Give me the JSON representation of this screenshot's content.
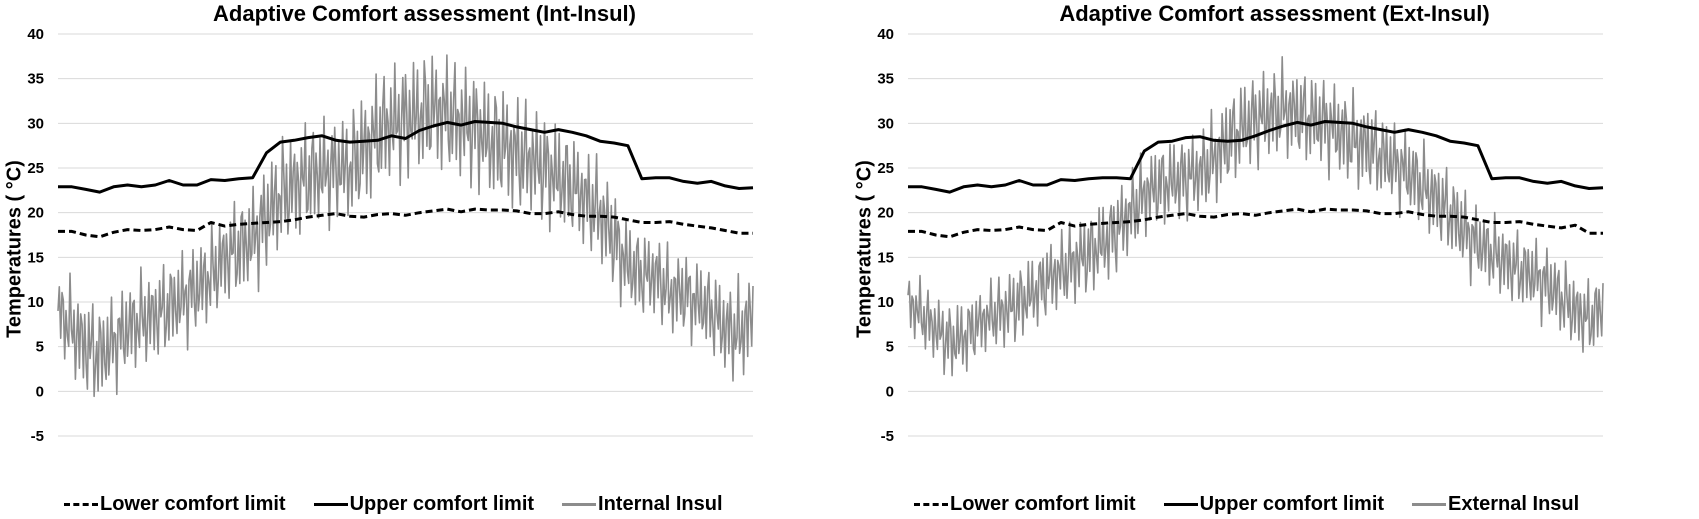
{
  "chart_data": [
    {
      "type": "line",
      "title": "Adaptive Comfort assessment (Int-Insul)",
      "ylabel": "Temperatures ( °C)",
      "xlabel": "",
      "ylim": [
        -5,
        40
      ],
      "yticks": [
        -5,
        0,
        5,
        10,
        15,
        20,
        25,
        30,
        35,
        40
      ],
      "grid": true,
      "legend_position": "bottom",
      "series": [
        {
          "name": "Lower comfort limit",
          "style": "dashed",
          "color": "#000000",
          "values": [
            17.9,
            17.9,
            17.5,
            17.3,
            17.8,
            18.1,
            18.0,
            18.1,
            18.4,
            18.1,
            18.0,
            18.9,
            18.5,
            18.7,
            18.8,
            18.9,
            19.0,
            19.2,
            19.5,
            19.7,
            19.9,
            19.6,
            19.5,
            19.8,
            19.9,
            19.7,
            20.0,
            20.2,
            20.4,
            20.1,
            20.4,
            20.3,
            20.3,
            20.2,
            19.9,
            19.9,
            20.1,
            19.8,
            19.6,
            19.6,
            19.5,
            19.2,
            18.9,
            18.9,
            19.0,
            18.7,
            18.5,
            18.3,
            18.0,
            17.7,
            17.7
          ]
        },
        {
          "name": "Upper comfort limit",
          "style": "solid",
          "color": "#000000",
          "values": [
            22.9,
            22.9,
            22.6,
            22.3,
            22.9,
            23.1,
            22.9,
            23.1,
            23.6,
            23.1,
            23.1,
            23.7,
            23.6,
            23.8,
            23.9,
            26.7,
            27.9,
            28.1,
            28.4,
            28.6,
            28.1,
            27.9,
            28.0,
            28.1,
            28.6,
            28.3,
            29.2,
            29.7,
            30.1,
            29.8,
            30.2,
            30.1,
            30.0,
            29.6,
            29.3,
            29.0,
            29.3,
            29.0,
            28.6,
            28.0,
            27.8,
            27.5,
            23.8,
            23.9,
            23.9,
            23.5,
            23.3,
            23.5,
            23.0,
            22.7,
            22.8
          ]
        },
        {
          "name": "Internal Insul",
          "style": "solid",
          "color": "#8c8c8c",
          "amplitude": [
            4.5,
            5.5,
            6.0,
            6.0,
            5.5,
            5.5,
            5.5,
            5.5,
            5.5,
            5.5,
            5.5,
            5.5,
            5.5,
            6.0,
            6.0,
            6.5,
            6.5,
            6.5,
            6.5,
            6.5,
            6.0,
            6.5,
            7.0,
            7.0,
            7.0,
            7.0,
            7.0,
            7.0,
            7.0,
            7.0,
            7.0,
            7.0,
            7.0,
            7.0,
            6.5,
            6.5,
            6.5,
            6.0,
            6.0,
            6.0,
            6.0,
            5.5,
            5.0,
            5.0,
            5.0,
            5.0,
            5.0,
            5.0,
            5.5,
            6.0,
            6.0
          ],
          "values": [
            9.0,
            7.0,
            5.0,
            4.0,
            5.5,
            7.0,
            8.0,
            8.5,
            9.5,
            10.5,
            11.5,
            13.0,
            15.0,
            16.0,
            17.0,
            19.5,
            22.0,
            23.0,
            24.0,
            24.5,
            25.0,
            25.0,
            27.0,
            29.0,
            30.0,
            30.5,
            31.0,
            31.5,
            31.0,
            30.0,
            29.5,
            28.0,
            27.5,
            26.5,
            26.0,
            25.0,
            24.0,
            23.0,
            21.5,
            20.0,
            17.0,
            14.0,
            13.0,
            13.0,
            11.0,
            11.0,
            10.0,
            9.0,
            7.0,
            6.5,
            8.5
          ]
        }
      ]
    },
    {
      "type": "line",
      "title": "Adaptive Comfort assessment (Ext-Insul)",
      "ylabel": "Temperatures ( °C)",
      "xlabel": "",
      "ylim": [
        -5,
        40
      ],
      "yticks": [
        -5,
        0,
        5,
        10,
        15,
        20,
        25,
        30,
        35,
        40
      ],
      "grid": true,
      "legend_position": "bottom",
      "series": [
        {
          "name": "Lower comfort limit",
          "style": "dashed",
          "color": "#000000",
          "values": [
            17.9,
            17.9,
            17.5,
            17.3,
            17.8,
            18.1,
            18.0,
            18.1,
            18.4,
            18.1,
            18.0,
            18.9,
            18.5,
            18.7,
            18.8,
            18.9,
            19.0,
            19.2,
            19.5,
            19.7,
            19.9,
            19.6,
            19.5,
            19.8,
            19.9,
            19.7,
            20.0,
            20.2,
            20.4,
            20.1,
            20.4,
            20.3,
            20.3,
            20.2,
            19.9,
            19.9,
            20.1,
            19.8,
            19.6,
            19.6,
            19.5,
            19.2,
            18.9,
            18.9,
            19.0,
            18.7,
            18.5,
            18.3,
            18.6,
            17.7,
            17.7
          ]
        },
        {
          "name": "Upper comfort limit",
          "style": "solid",
          "color": "#000000",
          "values": [
            22.9,
            22.9,
            22.6,
            22.3,
            22.9,
            23.1,
            22.9,
            23.1,
            23.6,
            23.1,
            23.1,
            23.7,
            23.6,
            23.8,
            23.9,
            23.9,
            23.8,
            26.9,
            27.9,
            28.0,
            28.4,
            28.5,
            28.1,
            28.0,
            28.1,
            28.6,
            29.2,
            29.7,
            30.1,
            29.8,
            30.2,
            30.1,
            30.0,
            29.6,
            29.3,
            29.0,
            29.3,
            29.0,
            28.6,
            28.0,
            27.8,
            27.5,
            23.8,
            23.9,
            23.9,
            23.5,
            23.3,
            23.5,
            23.0,
            22.7,
            22.8
          ]
        },
        {
          "name": "External Insul",
          "style": "solid",
          "color": "#8c8c8c",
          "amplitude": [
            3.5,
            4.0,
            4.0,
            4.5,
            4.5,
            4.0,
            4.0,
            4.5,
            4.5,
            4.5,
            4.5,
            4.5,
            5.0,
            5.0,
            5.0,
            5.0,
            5.0,
            5.0,
            5.0,
            5.0,
            5.0,
            5.0,
            5.5,
            5.5,
            5.5,
            5.5,
            5.5,
            5.5,
            5.5,
            5.5,
            5.5,
            5.5,
            5.5,
            5.5,
            5.0,
            5.0,
            5.0,
            5.0,
            5.0,
            5.0,
            5.0,
            4.5,
            4.5,
            4.5,
            4.5,
            4.5,
            4.5,
            4.5,
            4.5,
            4.5,
            4.5
          ],
          "values": [
            10.0,
            8.5,
            7.0,
            5.5,
            6.0,
            7.5,
            8.5,
            9.0,
            10.0,
            11.0,
            12.5,
            13.5,
            14.5,
            15.5,
            16.5,
            18.0,
            20.0,
            22.0,
            23.0,
            23.5,
            24.0,
            24.5,
            26.0,
            28.0,
            29.5,
            30.5,
            31.0,
            31.5,
            31.0,
            30.5,
            30.0,
            29.0,
            28.0,
            27.5,
            26.5,
            25.5,
            24.5,
            23.0,
            21.5,
            20.0,
            18.0,
            16.5,
            15.5,
            14.5,
            13.5,
            13.0,
            12.0,
            10.5,
            9.0,
            8.0,
            9.5
          ]
        }
      ]
    }
  ]
}
